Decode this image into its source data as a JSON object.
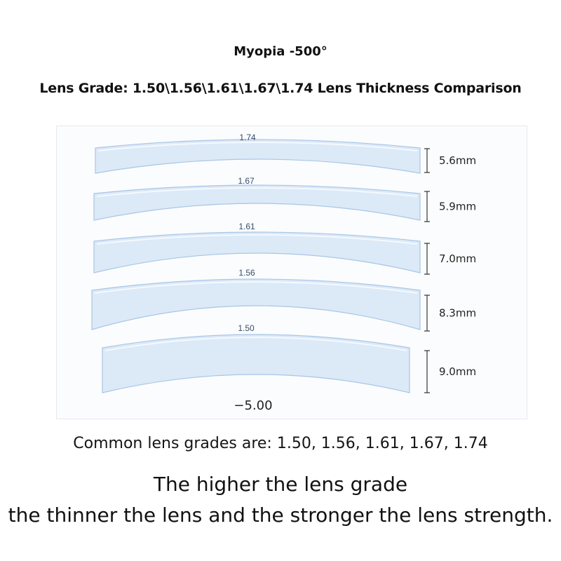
{
  "title": "Myopia -500°",
  "subtitle": "Lens Grade: 1.50\\1.56\\1.61\\1.67\\1.74 Lens Thickness Comparison",
  "diagram": {
    "power_label": "−5.00",
    "lenses": [
      {
        "grade": "1.74",
        "thickness": "5.6mm",
        "thickness_mm": 5.6
      },
      {
        "grade": "1.67",
        "thickness": "5.9mm",
        "thickness_mm": 5.9
      },
      {
        "grade": "1.61",
        "thickness": "7.0mm",
        "thickness_mm": 7.0
      },
      {
        "grade": "1.56",
        "thickness": "8.3mm",
        "thickness_mm": 8.3
      },
      {
        "grade": "1.50",
        "thickness": "9.0mm",
        "thickness_mm": 9.0
      }
    ],
    "colors": {
      "lens_fill": "#dce9f7",
      "lens_stroke": "#a9c6e6",
      "grade_text": "#3a4d6a",
      "bracket": "#333333"
    }
  },
  "footer": {
    "common": "Common lens grades are: 1.50, 1.56, 1.61, 1.67, 1.74",
    "line1": "The higher the lens grade",
    "line2": "the thinner the lens and the stronger the lens strength."
  }
}
